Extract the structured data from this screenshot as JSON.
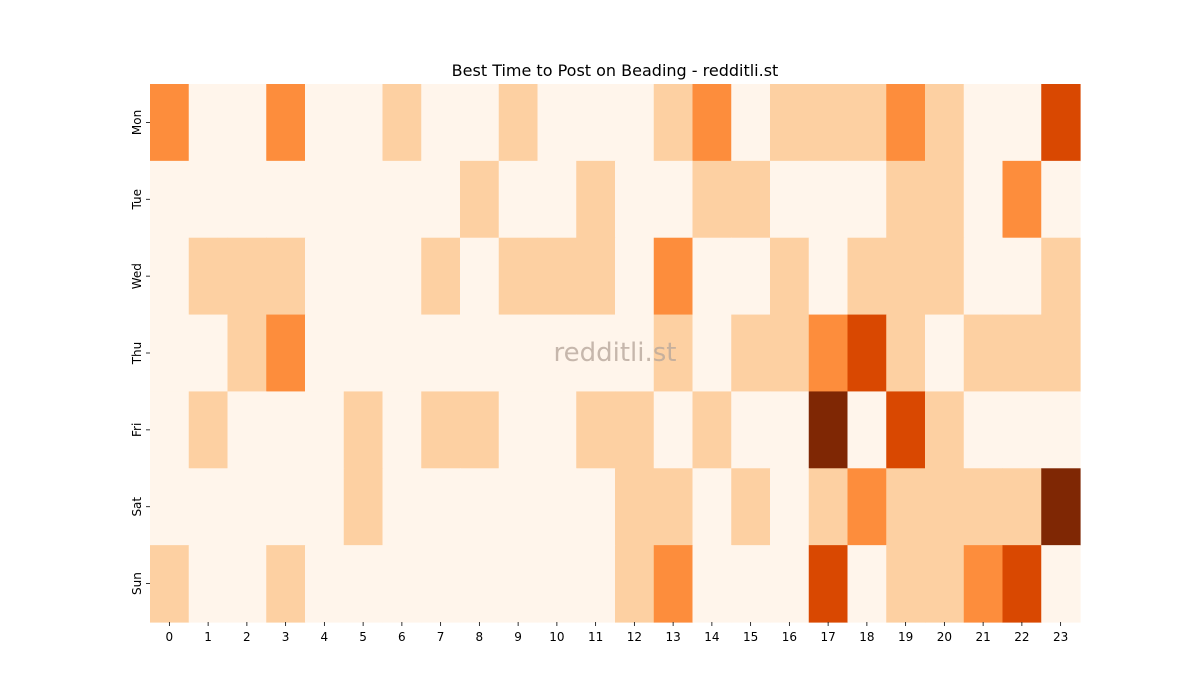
{
  "chart_data": {
    "type": "heatmap",
    "title": "Best Time to Post on Beading - redditli.st",
    "watermark": "redditli.st",
    "x": [
      "0",
      "1",
      "2",
      "3",
      "4",
      "5",
      "6",
      "7",
      "8",
      "9",
      "10",
      "11",
      "12",
      "13",
      "14",
      "15",
      "16",
      "17",
      "18",
      "19",
      "20",
      "21",
      "22",
      "23"
    ],
    "y": [
      "Mon",
      "Tue",
      "Wed",
      "Thu",
      "Fri",
      "Sat",
      "Sun"
    ],
    "values": [
      [
        2,
        0,
        0,
        2,
        0,
        0,
        1,
        0,
        0,
        1,
        0,
        0,
        0,
        1,
        2,
        0,
        1,
        1,
        1,
        2,
        1,
        0,
        0,
        3
      ],
      [
        0,
        0,
        0,
        0,
        0,
        0,
        0,
        0,
        1,
        0,
        0,
        1,
        0,
        0,
        1,
        1,
        0,
        0,
        0,
        1,
        1,
        0,
        2,
        0
      ],
      [
        0,
        1,
        1,
        1,
        0,
        0,
        0,
        1,
        0,
        1,
        1,
        1,
        0,
        2,
        0,
        0,
        1,
        0,
        1,
        1,
        1,
        0,
        0,
        1
      ],
      [
        0,
        0,
        1,
        2,
        0,
        0,
        0,
        0,
        0,
        0,
        0,
        0,
        0,
        1,
        0,
        1,
        1,
        2,
        3,
        1,
        0,
        1,
        1,
        1
      ],
      [
        0,
        1,
        0,
        0,
        0,
        1,
        0,
        1,
        1,
        0,
        0,
        1,
        1,
        0,
        1,
        0,
        0,
        4,
        0,
        3,
        1,
        0,
        0,
        0
      ],
      [
        0,
        0,
        0,
        0,
        0,
        1,
        0,
        0,
        0,
        0,
        0,
        0,
        1,
        1,
        0,
        1,
        0,
        1,
        2,
        1,
        1,
        1,
        1,
        4
      ],
      [
        1,
        0,
        0,
        1,
        0,
        0,
        0,
        0,
        0,
        0,
        0,
        0,
        1,
        2,
        0,
        0,
        0,
        3,
        0,
        1,
        1,
        2,
        3,
        0
      ]
    ],
    "colors": [
      "#fff5eb",
      "#fdd0a2",
      "#fd8d3c",
      "#d94801",
      "#7f2704"
    ],
    "colorbar": false,
    "grid": false
  }
}
